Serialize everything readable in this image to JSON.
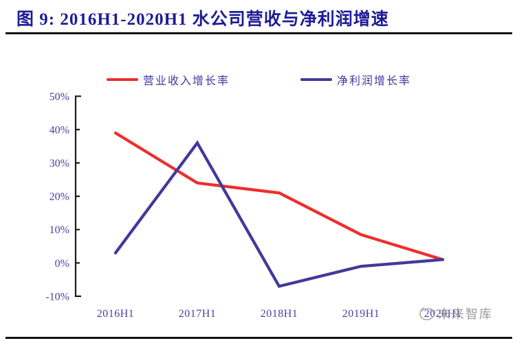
{
  "header": {
    "title": "图 9: 2016H1-2020H1 水公司营收与净利润增速"
  },
  "legend": {
    "items": [
      {
        "label": "营业收入增长率",
        "color": "#ee2d2d"
      },
      {
        "label": "净利润增长率",
        "color": "#413a9b"
      }
    ]
  },
  "watermark": {
    "text": "未来智库"
  },
  "colors": {
    "title": "#1f1c96",
    "axis": "#1a1a1a",
    "tick_label": "#4242a8",
    "revenue_line": "#ee2d2d",
    "net_profit_line": "#413a9b",
    "watermark": "#9b9b9b",
    "rule": "#111111"
  },
  "chart_data": {
    "type": "line",
    "categories": [
      "2016H1",
      "2017H1",
      "2018H1",
      "2019H1",
      "2020H1"
    ],
    "series": [
      {
        "name": "营业收入增长率",
        "color": "#ee2d2d",
        "values": [
          39,
          24,
          21,
          8.5,
          1
        ]
      },
      {
        "name": "净利润增长率",
        "color": "#413a9b",
        "values": [
          3,
          36,
          -7,
          -1,
          1
        ]
      }
    ],
    "title": "2016H1-2020H1 水公司营收与净利润增速",
    "xlabel": "",
    "ylabel": "",
    "ylim": [
      -10,
      50
    ],
    "yticks": [
      "50%",
      "40%",
      "30%",
      "20%",
      "10%",
      "0%",
      "-10%"
    ],
    "ytick_values": [
      50,
      40,
      30,
      20,
      10,
      0,
      -10
    ],
    "grid": false,
    "legend_position": "top"
  }
}
